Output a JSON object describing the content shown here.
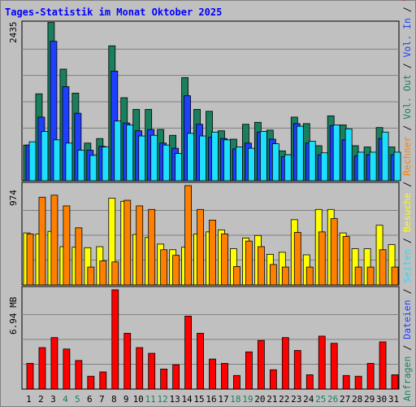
{
  "chart_data": {
    "type": "bar",
    "title": "Tages-Statistik im Monat Oktober 2025",
    "days": [
      "1",
      "2",
      "3",
      "4",
      "5",
      "6",
      "7",
      "8",
      "9",
      "10",
      "11",
      "12",
      "13",
      "14",
      "15",
      "16",
      "17",
      "18",
      "19",
      "20",
      "21",
      "22",
      "23",
      "24",
      "25",
      "26",
      "27",
      "28",
      "29",
      "30",
      "31"
    ],
    "weekend_days": [
      "4",
      "5",
      "11",
      "12",
      "18",
      "19",
      "25",
      "26"
    ],
    "panels": [
      {
        "id": "top",
        "max_label": "2435",
        "ymax": 2435,
        "series": [
          {
            "name": "Anfragen",
            "color": "#1a7f5e",
            "values": [
              550,
              1340,
              2440,
              1720,
              1350,
              580,
              650,
              2080,
              1280,
              1100,
              1100,
              790,
              700,
              1590,
              1100,
              1070,
              770,
              640,
              870,
              900,
              780,
              460,
              980,
              880,
              540,
              1000,
              860,
              540,
              520,
              820,
              520
            ]
          },
          {
            "name": "Dateien",
            "color": "#1f3fff",
            "values": [
              550,
              980,
              2150,
              1450,
              1040,
              470,
              530,
              1690,
              890,
              770,
              790,
              580,
              500,
              1310,
              870,
              670,
              650,
              490,
              580,
              750,
              640,
              370,
              880,
              580,
              400,
              850,
              630,
              380,
              400,
              650,
              400
            ]
          },
          {
            "name": "Seiten",
            "color": "#1fdfff",
            "values": [
              600,
              760,
              630,
              580,
              470,
              390,
              520,
              920,
              860,
              690,
              700,
              550,
              420,
              730,
              690,
              750,
              630,
              520,
              500,
              760,
              570,
              400,
              840,
              610,
              430,
              860,
              800,
              440,
              440,
              750,
              440
            ]
          }
        ]
      },
      {
        "id": "mid",
        "max_label": "974",
        "ymax": 974,
        "series": [
          {
            "name": "Besuche",
            "color": "#ffff00",
            "values": [
              510,
              500,
              525,
              375,
              370,
              365,
              375,
              850,
              820,
              495,
              465,
              400,
              345,
              370,
              500,
              520,
              540,
              355,
              460,
              485,
              300,
              320,
              640,
              295,
              740,
              740,
              510,
              355,
              355,
              585,
              395
            ]
          },
          {
            "name": "Rechner",
            "color": "#ff8000",
            "values": [
              500,
              860,
              880,
              775,
              560,
              175,
              235,
              225,
              830,
              775,
              740,
              345,
              290,
              974,
              740,
              635,
              500,
              180,
              430,
              375,
              200,
              175,
              515,
              175,
              520,
              650,
              475,
              175,
              175,
              345,
              175
            ]
          }
        ]
      },
      {
        "id": "bot",
        "max_label": "6.94 MB",
        "ymax": 6.94,
        "series": [
          {
            "name": "Vol. In",
            "color": "#0000ff",
            "values": [
              0,
              0,
              0,
              0,
              0,
              0,
              0,
              0,
              0,
              0,
              0,
              0,
              0,
              0,
              0,
              0,
              0,
              0,
              0,
              0,
              0,
              0,
              0,
              0,
              0,
              0,
              0,
              0,
              0,
              0,
              0
            ]
          },
          {
            "name": "Vol. Out",
            "color": "#ff0000",
            "values": [
              1.8,
              2.9,
              3.6,
              2.8,
              2.0,
              0.9,
              1.2,
              6.94,
              3.9,
              2.9,
              2.5,
              1.4,
              1.7,
              5.1,
              3.9,
              2.1,
              1.8,
              0.95,
              2.6,
              3.4,
              1.35,
              3.6,
              2.7,
              1.0,
              3.7,
              3.2,
              0.95,
              0.9,
              1.8,
              3.3,
              1.0
            ]
          }
        ]
      }
    ],
    "right_legend": [
      {
        "text": "Anfragen",
        "color": "#1a7f5e",
        "sep": false
      },
      {
        "text": " / ",
        "color": "#000000",
        "sep": true
      },
      {
        "text": "Dateien",
        "color": "#1f3fff",
        "sep": false
      },
      {
        "text": " / ",
        "color": "#000000",
        "sep": true
      },
      {
        "text": "Seiten",
        "color": "#1fdfff",
        "sep": false
      },
      {
        "text": " / ",
        "color": "#000000",
        "sep": true
      },
      {
        "text": "Besuche",
        "color": "#ffff00",
        "sep": false
      },
      {
        "text": " / ",
        "color": "#000000",
        "sep": true
      },
      {
        "text": "Rechner",
        "color": "#ff8000",
        "sep": false
      },
      {
        "text": " / ",
        "color": "#000000",
        "sep": true
      },
      {
        "text": "Vol. Out",
        "color": "#1a7f5e",
        "sep": false
      },
      {
        "text": " / ",
        "color": "#000000",
        "sep": true
      },
      {
        "text": "Vol. In",
        "color": "#1f3fff",
        "sep": false
      },
      {
        "text": " / ",
        "color": "#000000",
        "sep": true
      },
      {
        "text": "Volumen",
        "color": "#ff0000",
        "sep": false
      }
    ],
    "colors": {
      "weekday_label": "#000000",
      "weekend_label": "#1a7f5e",
      "title": "#0000ff",
      "grid": "#808080"
    }
  }
}
